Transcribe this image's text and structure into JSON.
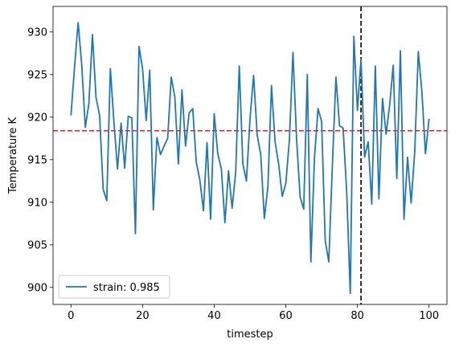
{
  "chart_data": {
    "type": "line",
    "xlabel": "timestep",
    "ylabel": "Temperature K",
    "xlim": [
      -5,
      105
    ],
    "ylim": [
      898,
      933
    ],
    "x_ticks": [
      0,
      20,
      40,
      60,
      80,
      100
    ],
    "y_ticks": [
      900,
      905,
      910,
      915,
      920,
      925,
      930
    ],
    "legend_position": "lower-left",
    "grid": false,
    "series": [
      {
        "name": "strain: 0.985",
        "color": "#1f77b4",
        "x": [
          0,
          1,
          2,
          3,
          4,
          5,
          6,
          7,
          8,
          9,
          10,
          11,
          12,
          13,
          14,
          15,
          16,
          17,
          18,
          19,
          20,
          21,
          22,
          23,
          24,
          25,
          26,
          27,
          28,
          29,
          30,
          31,
          32,
          33,
          34,
          35,
          36,
          37,
          38,
          39,
          40,
          41,
          42,
          43,
          44,
          45,
          46,
          47,
          48,
          49,
          50,
          51,
          52,
          53,
          54,
          55,
          56,
          57,
          58,
          59,
          60,
          61,
          62,
          63,
          64,
          65,
          66,
          67,
          68,
          69,
          70,
          71,
          72,
          73,
          74,
          75,
          76,
          77,
          78,
          79,
          80,
          81,
          82,
          83,
          84,
          85,
          86,
          87,
          88,
          89,
          90,
          91,
          92,
          93,
          94,
          95,
          96,
          97,
          98,
          99,
          100
        ],
        "y": [
          920.2,
          925.9,
          931.1,
          926.2,
          918.8,
          921.6,
          929.7,
          922.3,
          920.2,
          911.5,
          910.2,
          925.7,
          919.4,
          913.9,
          919.3,
          914.0,
          920.1,
          919.9,
          906.3,
          928.3,
          925.7,
          919.6,
          925.5,
          909.1,
          917.6,
          915.6,
          916.6,
          917.5,
          924.7,
          922.4,
          914.5,
          923.2,
          916.6,
          920.5,
          921.0,
          914.7,
          912.6,
          909.0,
          917.0,
          908.0,
          920.4,
          915.7,
          913.9,
          907.6,
          913.7,
          909.3,
          913.5,
          926.0,
          914.5,
          912.5,
          919.8,
          924.9,
          917.9,
          915.6,
          908.1,
          911.8,
          923.7,
          917.1,
          914.5,
          910.7,
          912.2,
          917.3,
          927.6,
          917.5,
          910.6,
          909.2,
          925.0,
          903.0,
          915.2,
          921.0,
          919.5,
          905.5,
          903.0,
          914.3,
          924.7,
          919.0,
          918.7,
          911.3,
          899.3,
          929.5,
          920.8,
          926.8,
          915.3,
          917.1,
          909.8,
          926.0,
          910.4,
          922.2,
          918.0,
          921.4,
          926.1,
          912.8,
          927.8,
          908.0,
          915.3,
          909.9,
          915.9,
          927.7,
          923.0,
          915.7,
          919.8
        ]
      }
    ],
    "reference_lines": [
      {
        "orientation": "horizontal",
        "value": 918.4,
        "color": "#d62728",
        "style": "dashed"
      },
      {
        "orientation": "vertical",
        "value": 81,
        "color": "#000000",
        "style": "dashed"
      }
    ]
  }
}
